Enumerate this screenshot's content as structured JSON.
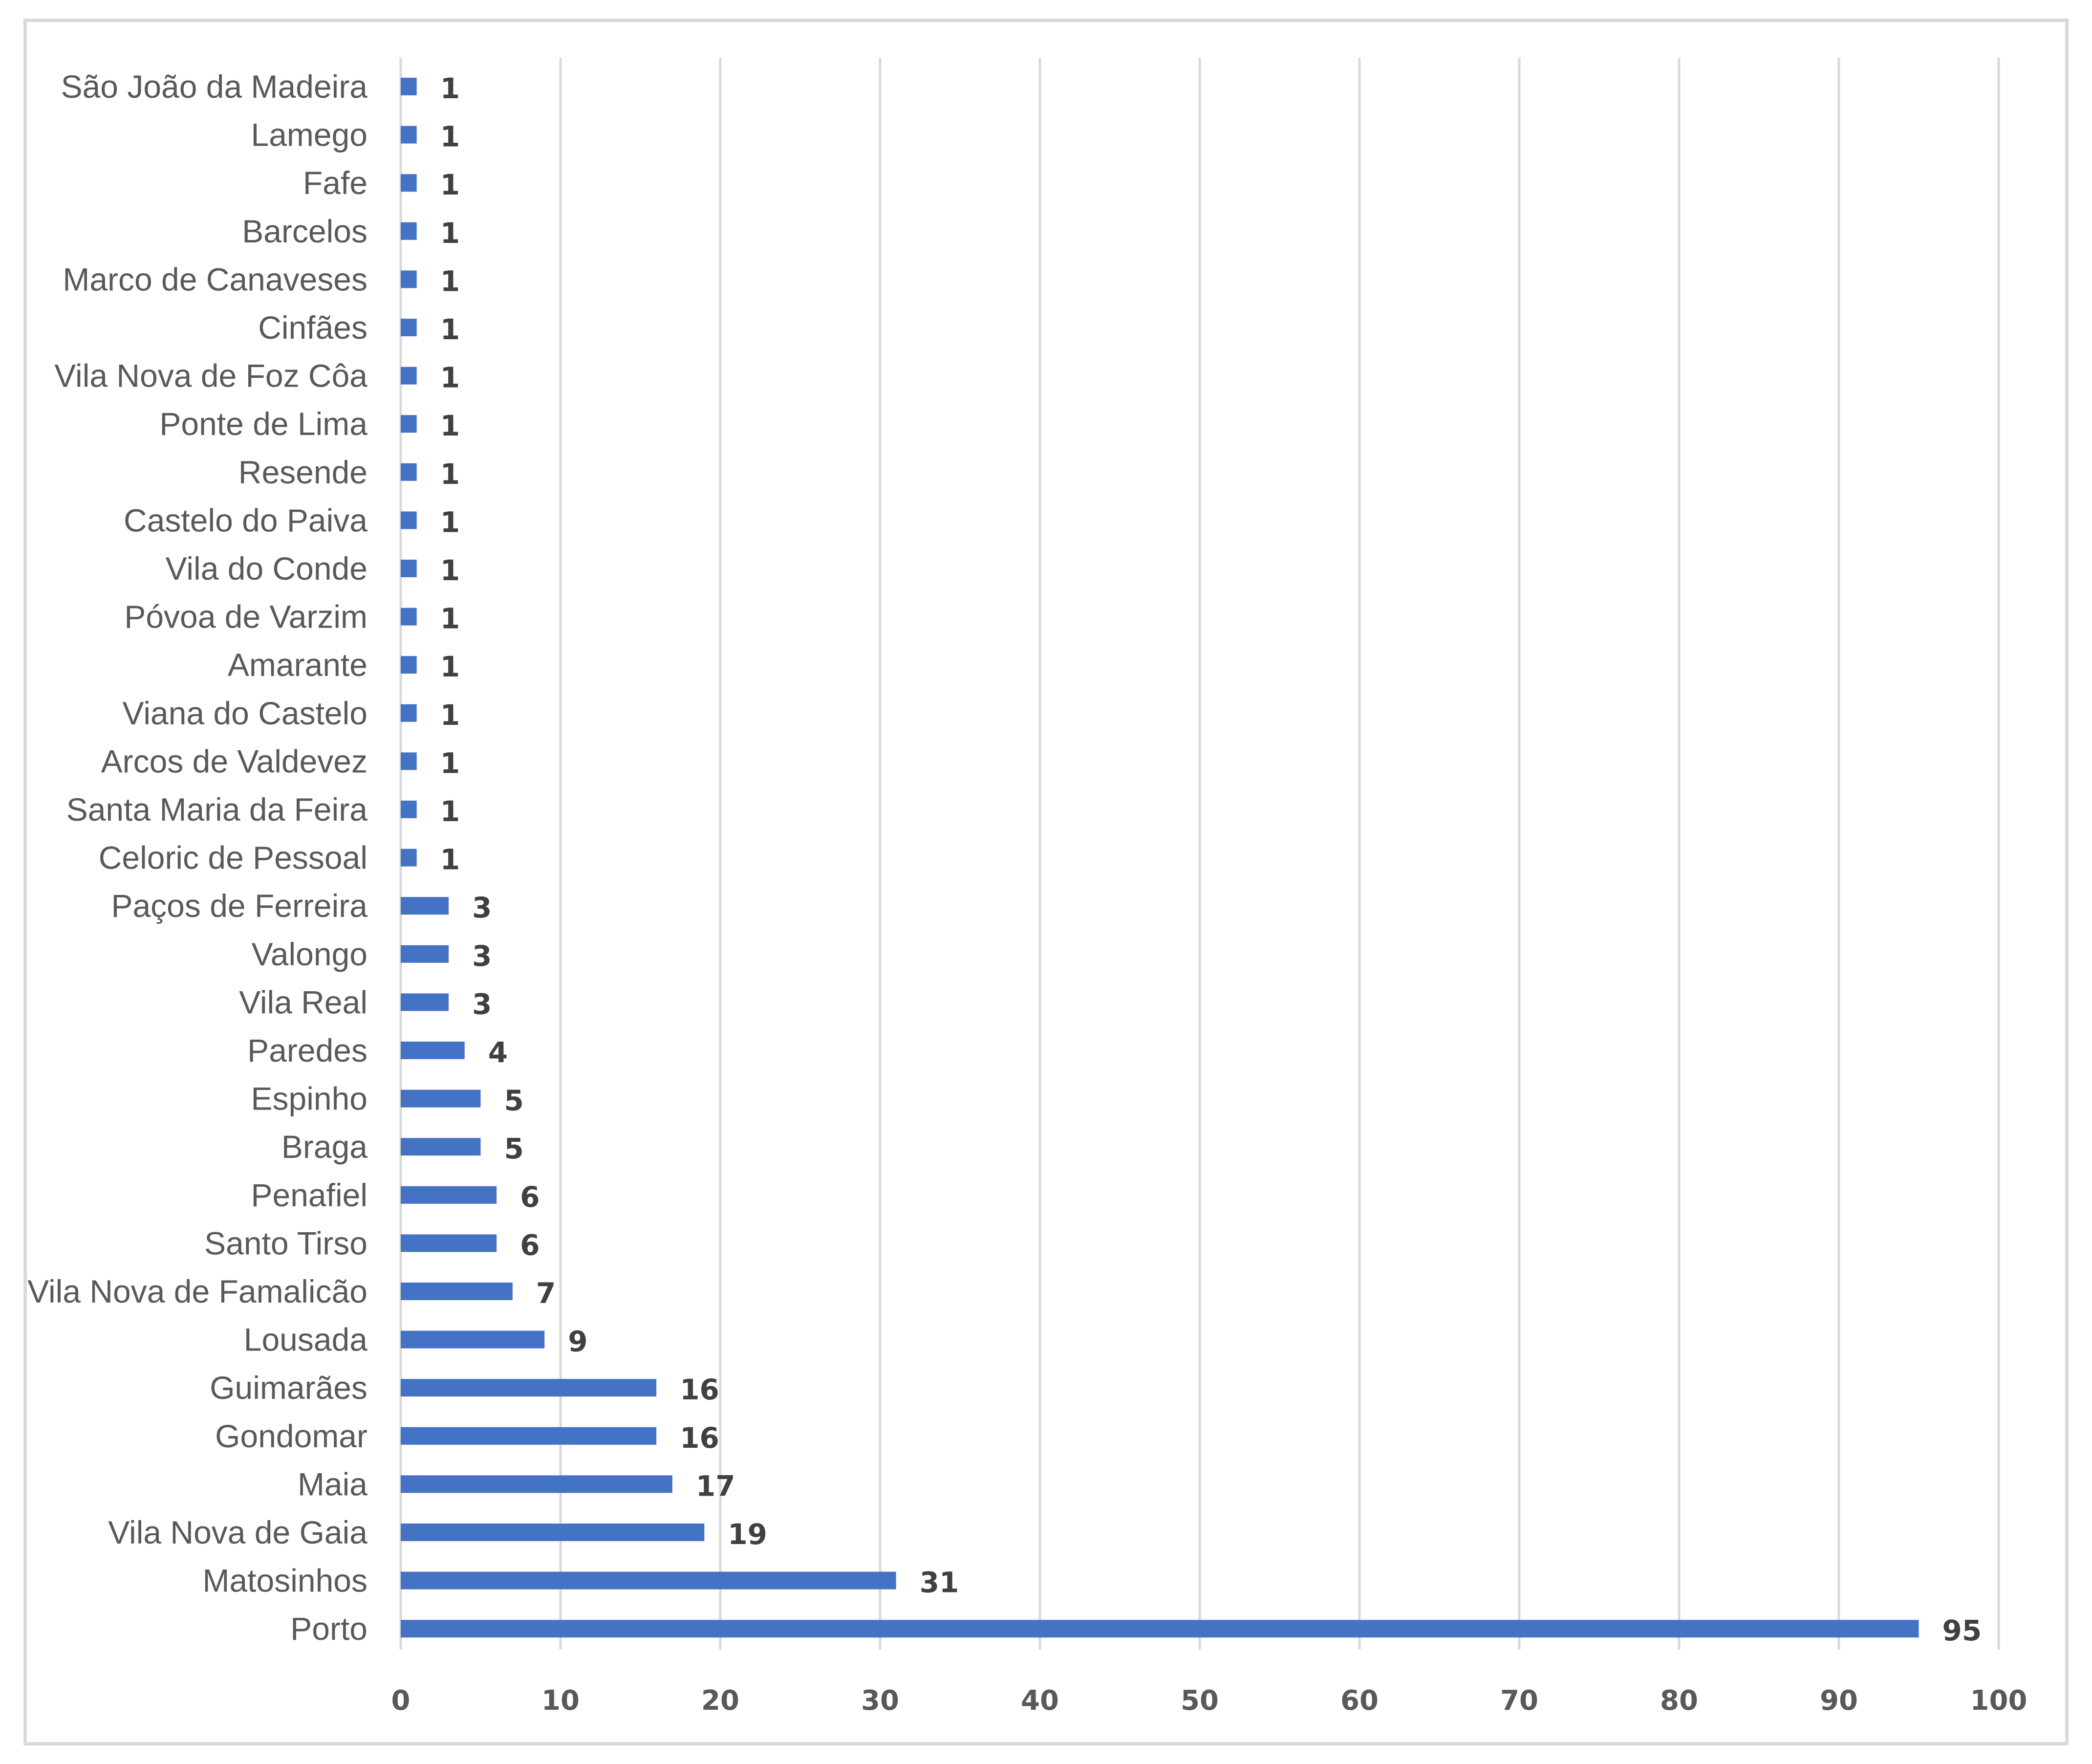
{
  "chart_data": {
    "type": "bar",
    "orientation": "horizontal",
    "title": "",
    "xlabel": "",
    "ylabel": "",
    "xlim": [
      0,
      100
    ],
    "x_ticks": [
      0,
      10,
      20,
      30,
      40,
      50,
      60,
      70,
      80,
      90,
      100
    ],
    "grid": "vertical",
    "legend": "none",
    "bar_color": "#4472c4",
    "categories": [
      "São João da Madeira",
      "Lamego",
      "Fafe",
      "Barcelos",
      "Marco de Canaveses",
      "Cinfães",
      "Vila Nova de Foz Côa",
      "Ponte de Lima",
      "Resende",
      "Castelo do Paiva",
      "Vila do Conde",
      "Póvoa de Varzim",
      "Amarante",
      "Viana do Castelo",
      "Arcos de Valdevez",
      "Santa Maria da Feira",
      "Celoric de Pessoal",
      "Paços de Ferreira",
      "Valongo",
      "Vila Real",
      "Paredes",
      "Espinho",
      "Braga",
      "Penafiel",
      "Santo Tirso",
      "Vila Nova de Famalicão",
      "Lousada",
      "Guimarães",
      "Gondomar",
      "Maia",
      "Vila Nova de Gaia",
      "Matosinhos",
      "Porto"
    ],
    "values": [
      1,
      1,
      1,
      1,
      1,
      1,
      1,
      1,
      1,
      1,
      1,
      1,
      1,
      1,
      1,
      1,
      1,
      3,
      3,
      3,
      4,
      5,
      5,
      6,
      6,
      7,
      9,
      16,
      16,
      17,
      19,
      31,
      95
    ]
  }
}
